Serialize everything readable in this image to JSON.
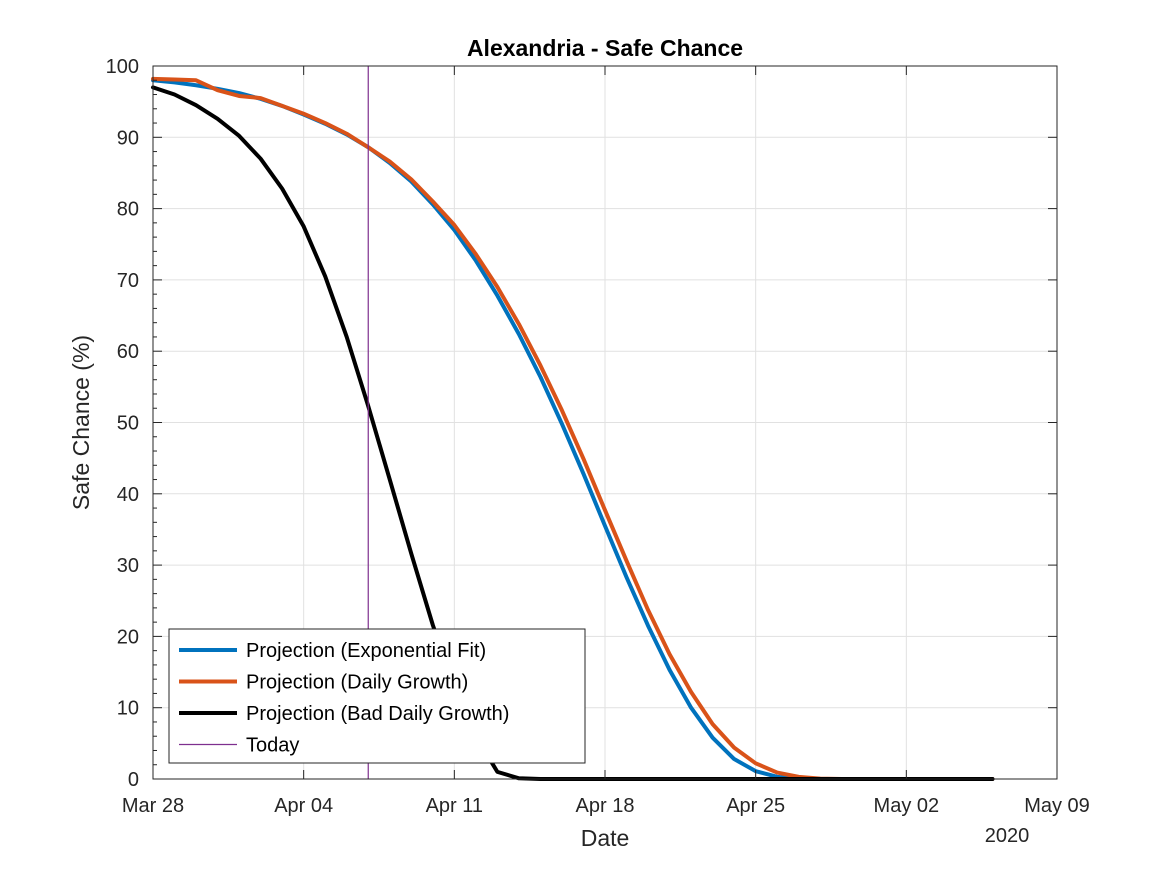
{
  "chart_data": {
    "type": "line",
    "title": "Alexandria - Safe Chance",
    "xlabel": "Date",
    "ylabel": "Safe Chance (%)",
    "x_secondary_label": "2020",
    "grid": true,
    "legend_location": "bottom-left",
    "xlim": [
      "2020-03-28",
      "2020-05-09"
    ],
    "ylim": [
      0,
      100
    ],
    "x_ticks": [
      {
        "date": "2020-03-28",
        "label": "Mar 28"
      },
      {
        "date": "2020-04-04",
        "label": "Apr 04"
      },
      {
        "date": "2020-04-11",
        "label": "Apr 11"
      },
      {
        "date": "2020-04-18",
        "label": "Apr 18"
      },
      {
        "date": "2020-04-25",
        "label": "Apr 25"
      },
      {
        "date": "2020-05-02",
        "label": "May 02"
      },
      {
        "date": "2020-05-09",
        "label": "May 09"
      }
    ],
    "y_ticks": [
      0,
      10,
      20,
      30,
      40,
      50,
      60,
      70,
      80,
      90,
      100
    ],
    "series": [
      {
        "name": "Projection (Exponential Fit)",
        "color": "#0072BD",
        "points": [
          [
            "2020-03-28",
            98.0
          ],
          [
            "2020-03-29",
            97.7
          ],
          [
            "2020-03-30",
            97.3
          ],
          [
            "2020-03-31",
            96.8
          ],
          [
            "2020-04-01",
            96.2
          ],
          [
            "2020-04-02",
            95.4
          ],
          [
            "2020-04-03",
            94.4
          ],
          [
            "2020-04-04",
            93.2
          ],
          [
            "2020-04-05",
            91.9
          ],
          [
            "2020-04-06",
            90.4
          ],
          [
            "2020-04-07",
            88.6
          ],
          [
            "2020-04-08",
            86.4
          ],
          [
            "2020-04-09",
            83.8
          ],
          [
            "2020-04-10",
            80.6
          ],
          [
            "2020-04-11",
            77.0
          ],
          [
            "2020-04-12",
            72.7
          ],
          [
            "2020-04-13",
            67.8
          ],
          [
            "2020-04-14",
            62.4
          ],
          [
            "2020-04-15",
            56.4
          ],
          [
            "2020-04-16",
            49.8
          ],
          [
            "2020-04-17",
            42.8
          ],
          [
            "2020-04-18",
            35.5
          ],
          [
            "2020-04-19",
            28.3
          ],
          [
            "2020-04-20",
            21.5
          ],
          [
            "2020-04-21",
            15.3
          ],
          [
            "2020-04-22",
            10.0
          ],
          [
            "2020-04-23",
            5.8
          ],
          [
            "2020-04-24",
            2.8
          ],
          [
            "2020-04-25",
            1.1
          ],
          [
            "2020-04-26",
            0.3
          ],
          [
            "2020-04-27",
            0.05
          ],
          [
            "2020-04-28",
            0.0
          ],
          [
            "2020-04-30",
            0.0
          ],
          [
            "2020-05-02",
            0.0
          ],
          [
            "2020-05-04",
            0.0
          ],
          [
            "2020-05-06",
            0.0
          ]
        ]
      },
      {
        "name": "Projection (Daily Growth)",
        "color": "#D95319",
        "points": [
          [
            "2020-03-28",
            98.2
          ],
          [
            "2020-03-29",
            98.1
          ],
          [
            "2020-03-30",
            98.0
          ],
          [
            "2020-03-31",
            96.6
          ],
          [
            "2020-04-01",
            95.8
          ],
          [
            "2020-04-02",
            95.5
          ],
          [
            "2020-04-03",
            94.4
          ],
          [
            "2020-04-04",
            93.3
          ],
          [
            "2020-04-05",
            92.0
          ],
          [
            "2020-04-06",
            90.5
          ],
          [
            "2020-04-07",
            88.6
          ],
          [
            "2020-04-08",
            86.6
          ],
          [
            "2020-04-09",
            84.1
          ],
          [
            "2020-04-10",
            81.0
          ],
          [
            "2020-04-11",
            77.7
          ],
          [
            "2020-04-12",
            73.6
          ],
          [
            "2020-04-13",
            69.0
          ],
          [
            "2020-04-14",
            63.8
          ],
          [
            "2020-04-15",
            58.0
          ],
          [
            "2020-04-16",
            51.7
          ],
          [
            "2020-04-17",
            44.9
          ],
          [
            "2020-04-18",
            37.7
          ],
          [
            "2020-04-19",
            30.6
          ],
          [
            "2020-04-20",
            23.7
          ],
          [
            "2020-04-21",
            17.5
          ],
          [
            "2020-04-22",
            12.2
          ],
          [
            "2020-04-23",
            7.7
          ],
          [
            "2020-04-24",
            4.4
          ],
          [
            "2020-04-25",
            2.2
          ],
          [
            "2020-04-26",
            0.9
          ],
          [
            "2020-04-27",
            0.3
          ],
          [
            "2020-04-28",
            0.05
          ],
          [
            "2020-04-29",
            0.0
          ],
          [
            "2020-05-02",
            0.0
          ],
          [
            "2020-05-04",
            0.0
          ],
          [
            "2020-05-06",
            0.0
          ]
        ]
      },
      {
        "name": "Projection (Bad Daily Growth)",
        "color": "#000000",
        "points": [
          [
            "2020-03-28",
            97.0
          ],
          [
            "2020-03-29",
            96.0
          ],
          [
            "2020-03-30",
            94.5
          ],
          [
            "2020-03-31",
            92.6
          ],
          [
            "2020-04-01",
            90.2
          ],
          [
            "2020-04-02",
            87.0
          ],
          [
            "2020-04-03",
            82.8
          ],
          [
            "2020-04-04",
            77.5
          ],
          [
            "2020-04-05",
            70.5
          ],
          [
            "2020-04-06",
            62.0
          ],
          [
            "2020-04-07",
            52.3
          ],
          [
            "2020-04-08",
            42.0
          ],
          [
            "2020-04-09",
            31.6
          ],
          [
            "2020-04-10",
            21.6
          ],
          [
            "2020-04-11",
            12.8
          ],
          [
            "2020-04-12",
            6.0
          ],
          [
            "2020-04-13",
            1.0
          ],
          [
            "2020-04-14",
            0.1
          ],
          [
            "2020-04-15",
            0.0
          ],
          [
            "2020-04-20",
            0.0
          ],
          [
            "2020-04-25",
            0.0
          ],
          [
            "2020-04-30",
            0.0
          ],
          [
            "2020-05-06",
            0.0
          ]
        ]
      }
    ],
    "reference_line": {
      "name": "Today",
      "date": "2020-04-07",
      "color": "#7E2F8E"
    }
  }
}
